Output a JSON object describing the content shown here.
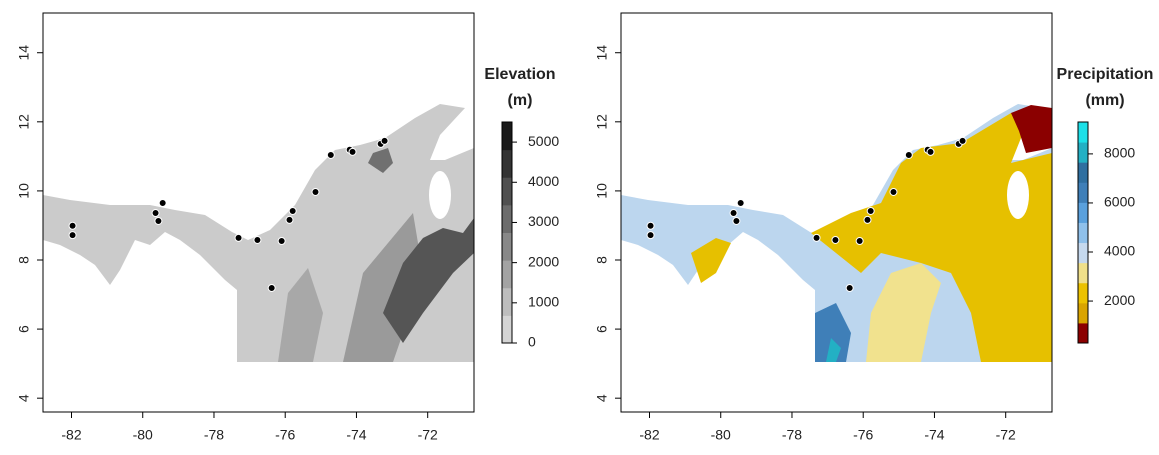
{
  "chart_data": [
    {
      "type": "map",
      "xlim": [
        -82.8,
        -70.7
      ],
      "ylim": [
        3.6,
        15.15
      ],
      "xticks": [
        -82,
        -80,
        -78,
        -76,
        -74,
        -72
      ],
      "yticks": [
        4,
        6,
        8,
        10,
        12,
        14
      ],
      "points": {
        "color": "#000000",
        "x": [
          -81.97,
          -81.97,
          -79.44,
          -79.64,
          -79.56,
          -77.31,
          -76.78,
          -76.1,
          -75.79,
          -75.88,
          -75.15,
          -74.72,
          -74.19,
          -74.11,
          -73.32,
          -73.21,
          -76.38
        ],
        "y": [
          8.99,
          8.72,
          9.65,
          9.36,
          9.13,
          8.64,
          8.58,
          8.55,
          9.42,
          9.16,
          9.97,
          11.04,
          11.19,
          11.13,
          11.36,
          11.45,
          7.19
        ]
      },
      "colorbar": {
        "title": [
          "Elevation",
          "(m)"
        ],
        "lim": [
          0,
          5500
        ],
        "ticks": [
          0,
          1000,
          2000,
          3000,
          4000,
          5000
        ],
        "colors": [
          "#d4d4d4",
          "#bdbdbd",
          "#a3a3a3",
          "#888888",
          "#6c6c6c",
          "#505050",
          "#343434",
          "#1a1a1a"
        ]
      }
    },
    {
      "type": "map",
      "xlim": [
        -82.8,
        -70.7
      ],
      "ylim": [
        3.6,
        15.15
      ],
      "xticks": [
        -82,
        -80,
        -78,
        -76,
        -74,
        -72
      ],
      "yticks": [
        4,
        6,
        8,
        10,
        12,
        14
      ],
      "points": {
        "color": "#000000",
        "x": [
          -81.97,
          -81.97,
          -79.44,
          -79.64,
          -79.56,
          -77.31,
          -76.78,
          -76.1,
          -75.79,
          -75.88,
          -75.15,
          -74.72,
          -74.19,
          -74.11,
          -73.32,
          -73.21,
          -76.38
        ],
        "y": [
          8.99,
          8.72,
          9.65,
          9.36,
          9.13,
          8.64,
          8.58,
          8.55,
          9.42,
          9.16,
          9.97,
          11.04,
          11.19,
          11.13,
          11.36,
          11.45,
          7.19
        ]
      },
      "colorbar": {
        "title": [
          "Precipitation",
          "(mm)"
        ],
        "lim": [
          290,
          9300
        ],
        "ticks": [
          2000,
          4000,
          6000,
          8000
        ],
        "colors": [
          "#8b0000",
          "#d9a400",
          "#ecc200",
          "#f0e08a",
          "#c6d9ee",
          "#8fc0ea",
          "#5aa0dc",
          "#3f7fb8",
          "#2f6fa0",
          "#23b0c4",
          "#1ce0e8"
        ]
      }
    }
  ]
}
